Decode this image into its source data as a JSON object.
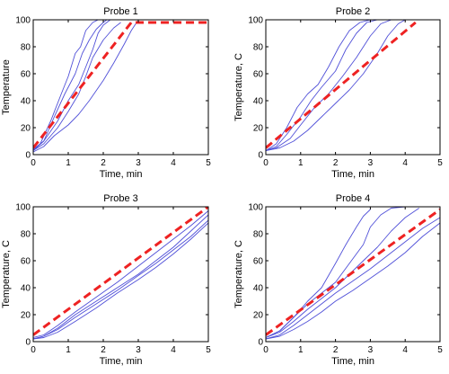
{
  "chart_data": [
    {
      "type": "line",
      "title": "Probe 1",
      "xlabel": "Time, min",
      "ylabel": "Temperature",
      "xlim": [
        0,
        5
      ],
      "ylim": [
        0,
        100
      ],
      "xticks": [
        "0",
        "1",
        "2",
        "3",
        "4",
        "5"
      ],
      "yticks": [
        "0",
        "20",
        "40",
        "60",
        "80",
        "100"
      ],
      "grid": false,
      "series": [
        {
          "kind": "measured",
          "color": "#5050d8",
          "x": [
            0,
            0.2,
            0.5,
            0.8,
            1.0,
            1.2,
            1.35,
            1.5,
            1.7,
            1.85
          ],
          "y": [
            3,
            8,
            25,
            45,
            58,
            75,
            80,
            92,
            98,
            100
          ]
        },
        {
          "kind": "measured",
          "color": "#5050d8",
          "x": [
            0,
            0.3,
            0.6,
            0.9,
            1.2,
            1.4,
            1.6,
            1.8,
            2.0,
            2.1
          ],
          "y": [
            4,
            10,
            28,
            45,
            60,
            75,
            85,
            93,
            98,
            100
          ]
        },
        {
          "kind": "measured",
          "color": "#5050d8",
          "x": [
            0,
            0.3,
            0.7,
            1.0,
            1.3,
            1.5,
            1.7,
            1.85,
            2.0,
            2.2
          ],
          "y": [
            3,
            10,
            25,
            40,
            52,
            65,
            78,
            90,
            96,
            100
          ]
        },
        {
          "kind": "measured",
          "color": "#5050d8",
          "x": [
            0,
            0.3,
            0.7,
            1.0,
            1.3,
            1.5,
            1.7,
            2.0,
            2.3,
            2.5
          ],
          "y": [
            3,
            8,
            20,
            32,
            45,
            58,
            72,
            85,
            94,
            98
          ]
        },
        {
          "kind": "measured",
          "color": "#5050d8",
          "x": [
            0,
            0.3,
            0.6,
            1.0,
            1.3,
            1.6,
            2.0,
            2.3,
            2.6,
            2.8,
            2.95
          ],
          "y": [
            2,
            6,
            14,
            22,
            30,
            40,
            55,
            68,
            82,
            92,
            98
          ]
        },
        {
          "kind": "reference",
          "color": "#ee2222",
          "x": [
            0,
            2.8,
            5
          ],
          "y": [
            5,
            98,
            98
          ]
        }
      ]
    },
    {
      "type": "line",
      "title": "Probe 2",
      "xlabel": "Time, min",
      "ylabel": "Temperature, C",
      "xlim": [
        0,
        5
      ],
      "ylim": [
        0,
        100
      ],
      "xticks": [
        "0",
        "1",
        "2",
        "3",
        "4",
        "5"
      ],
      "yticks": [
        "0",
        "20",
        "40",
        "60",
        "80",
        "100"
      ],
      "grid": false,
      "series": [
        {
          "kind": "measured",
          "color": "#5050d8",
          "x": [
            0,
            0.3,
            0.6,
            0.9,
            1.2,
            1.5,
            1.8,
            2.1,
            2.4,
            2.7,
            3.0
          ],
          "y": [
            3,
            8,
            20,
            35,
            45,
            52,
            65,
            80,
            92,
            98,
            100
          ]
        },
        {
          "kind": "measured",
          "color": "#5050d8",
          "x": [
            0,
            0.3,
            0.6,
            1.0,
            1.3,
            1.6,
            2.0,
            2.3,
            2.6,
            2.9,
            3.2
          ],
          "y": [
            3,
            6,
            15,
            28,
            40,
            50,
            62,
            78,
            90,
            98,
            100
          ]
        },
        {
          "kind": "measured",
          "color": "#5050d8",
          "x": [
            0,
            0.3,
            0.7,
            1.0,
            1.4,
            1.8,
            2.2,
            2.6,
            3.0,
            3.3,
            3.6
          ],
          "y": [
            3,
            5,
            12,
            22,
            35,
            45,
            58,
            72,
            88,
            97,
            100
          ]
        },
        {
          "kind": "measured",
          "color": "#5050d8",
          "x": [
            0,
            0.4,
            0.8,
            1.2,
            1.6,
            2.0,
            2.4,
            2.8,
            3.2,
            3.5,
            3.8,
            4.0
          ],
          "y": [
            3,
            5,
            10,
            18,
            28,
            38,
            48,
            60,
            75,
            88,
            97,
            100
          ]
        },
        {
          "kind": "reference",
          "color": "#ee2222",
          "x": [
            0,
            4.3
          ],
          "y": [
            5,
            98
          ]
        }
      ]
    },
    {
      "type": "line",
      "title": "Probe 3",
      "xlabel": "Time, min",
      "ylabel": "Temperature, C",
      "xlim": [
        0,
        5
      ],
      "ylim": [
        0,
        100
      ],
      "xticks": [
        "0",
        "1",
        "2",
        "3",
        "4",
        "5"
      ],
      "yticks": [
        "0",
        "20",
        "40",
        "60",
        "80",
        "100"
      ],
      "grid": false,
      "series": [
        {
          "kind": "measured",
          "color": "#5050d8",
          "x": [
            0,
            0.3,
            0.7,
            1.2,
            1.8,
            2.4,
            3.0,
            3.5,
            4.0,
            4.5,
            5.0
          ],
          "y": [
            3,
            5,
            12,
            22,
            33,
            44,
            56,
            66,
            76,
            86,
            97
          ]
        },
        {
          "kind": "measured",
          "color": "#5050d8",
          "x": [
            0,
            0.3,
            0.7,
            1.2,
            1.8,
            2.4,
            3.0,
            3.5,
            4.0,
            4.5,
            5.0
          ],
          "y": [
            2,
            4,
            10,
            20,
            30,
            40,
            50,
            60,
            70,
            82,
            94
          ]
        },
        {
          "kind": "measured",
          "color": "#5050d8",
          "x": [
            0,
            0.3,
            0.7,
            1.2,
            1.8,
            2.4,
            3.0,
            3.5,
            4.0,
            4.5,
            5.0
          ],
          "y": [
            2,
            4,
            9,
            18,
            28,
            38,
            49,
            58,
            68,
            78,
            90
          ]
        },
        {
          "kind": "measured",
          "color": "#5050d8",
          "x": [
            0,
            0.3,
            0.7,
            1.2,
            1.8,
            2.4,
            3.0,
            3.5,
            4.0,
            4.5,
            5.0
          ],
          "y": [
            2,
            3,
            7,
            15,
            25,
            36,
            46,
            55,
            65,
            76,
            88
          ]
        },
        {
          "kind": "reference",
          "color": "#ee2222",
          "x": [
            0,
            5
          ],
          "y": [
            5,
            100
          ]
        }
      ]
    },
    {
      "type": "line",
      "title": "Probe 4",
      "xlabel": "Time, min",
      "ylabel": "Temperature, C",
      "xlim": [
        0,
        5
      ],
      "ylim": [
        0,
        100
      ],
      "xticks": [
        "0",
        "1",
        "2",
        "3",
        "4",
        "5"
      ],
      "yticks": [
        "0",
        "20",
        "40",
        "60",
        "80",
        "100"
      ],
      "grid": false,
      "series": [
        {
          "kind": "measured",
          "color": "#5050d8",
          "x": [
            0,
            0.4,
            0.8,
            1.2,
            1.6,
            2.0,
            2.3,
            2.6,
            2.8,
            3.0
          ],
          "y": [
            3,
            8,
            18,
            30,
            40,
            58,
            72,
            85,
            93,
            98
          ]
        },
        {
          "kind": "measured",
          "color": "#5050d8",
          "x": [
            0,
            0.4,
            0.8,
            1.2,
            1.6,
            2.0,
            2.4,
            2.8,
            3.0,
            3.3,
            3.6,
            4.0
          ],
          "y": [
            3,
            8,
            18,
            28,
            36,
            44,
            58,
            72,
            85,
            94,
            99,
            100
          ]
        },
        {
          "kind": "measured",
          "color": "#5050d8",
          "x": [
            0,
            0.4,
            0.8,
            1.2,
            1.6,
            2.0,
            2.4,
            2.8,
            3.2,
            3.6,
            4.0,
            4.4
          ],
          "y": [
            3,
            7,
            15,
            24,
            32,
            40,
            50,
            60,
            70,
            82,
            92,
            99
          ]
        },
        {
          "kind": "measured",
          "color": "#5050d8",
          "x": [
            0,
            0.4,
            0.8,
            1.2,
            1.6,
            2.0,
            2.5,
            3.0,
            3.5,
            4.0,
            4.5,
            5.0
          ],
          "y": [
            2,
            5,
            12,
            20,
            28,
            36,
            45,
            54,
            64,
            74,
            84,
            92
          ]
        },
        {
          "kind": "measured",
          "color": "#5050d8",
          "x": [
            0,
            0.4,
            0.8,
            1.2,
            1.6,
            2.0,
            2.5,
            3.0,
            3.5,
            4.0,
            4.5,
            5.0
          ],
          "y": [
            2,
            4,
            9,
            15,
            22,
            30,
            38,
            47,
            56,
            66,
            78,
            88
          ]
        },
        {
          "kind": "reference",
          "color": "#ee2222",
          "x": [
            0,
            5
          ],
          "y": [
            5,
            98
          ]
        }
      ]
    }
  ]
}
